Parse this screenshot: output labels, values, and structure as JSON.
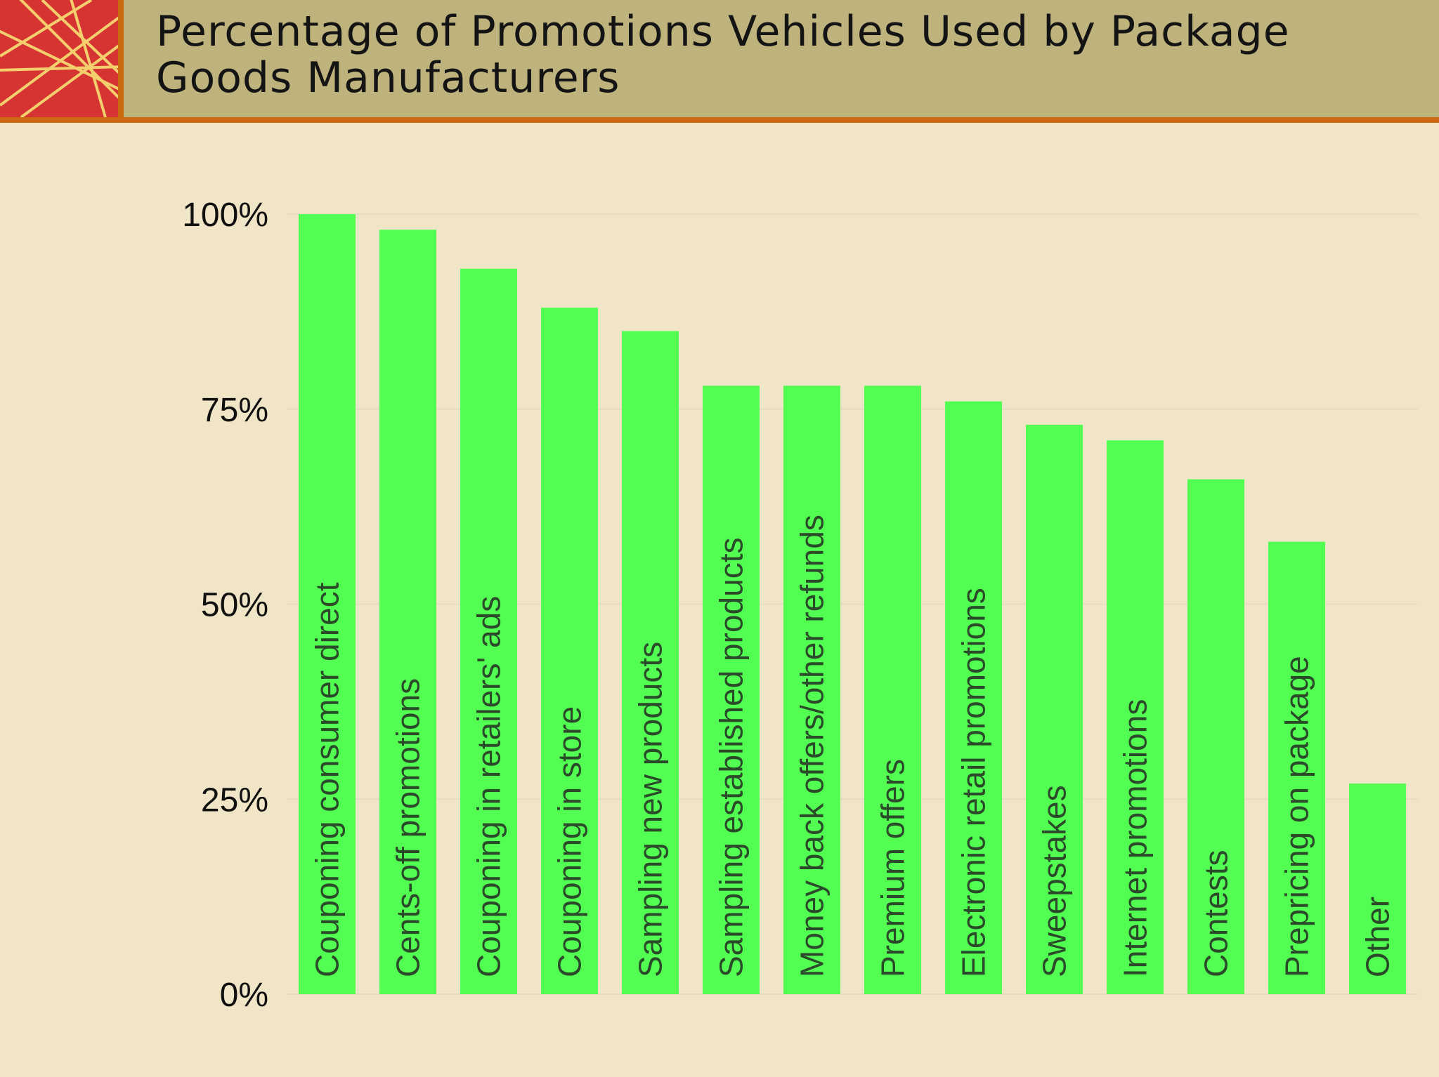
{
  "header": {
    "title": "Percentage of Promotions Vehicles Used by Package Goods Manufacturers"
  },
  "colors": {
    "bar": "#52fe52",
    "bar_label": "#2a4a2a",
    "axis_text": "#111111",
    "grid": "#e6dcc2",
    "header_bg": "#beb27d",
    "header_rule": "#cc6a12",
    "logo_bg": "#d63432",
    "logo_lines": "#f4cf6e"
  },
  "chart_data": {
    "type": "bar",
    "title": "Percentage of Promotions Vehicles Used by Package Goods Manufacturers",
    "xlabel": "",
    "ylabel": "",
    "ylim": [
      0,
      100
    ],
    "yticks": [
      {
        "value": 0,
        "label": "0%"
      },
      {
        "value": 25,
        "label": "25%"
      },
      {
        "value": 50,
        "label": "50%"
      },
      {
        "value": 75,
        "label": "75%"
      },
      {
        "value": 100,
        "label": "100%"
      }
    ],
    "grid": true,
    "legend": "none",
    "categories": [
      "Couponing consumer direct",
      "Cents-off promotions",
      "Couponing in retailers' ads",
      "Couponing in store",
      "Sampling new products",
      "Sampling established products",
      "Money back offers/other refunds",
      "Premium offers",
      "Electronic retail promotions",
      "Sweepstakes",
      "Internet promotions",
      "Contests",
      "Prepricing on package",
      "Other"
    ],
    "values": [
      100,
      98,
      93,
      88,
      85,
      78,
      78,
      78,
      76,
      73,
      71,
      66,
      58,
      27
    ]
  }
}
